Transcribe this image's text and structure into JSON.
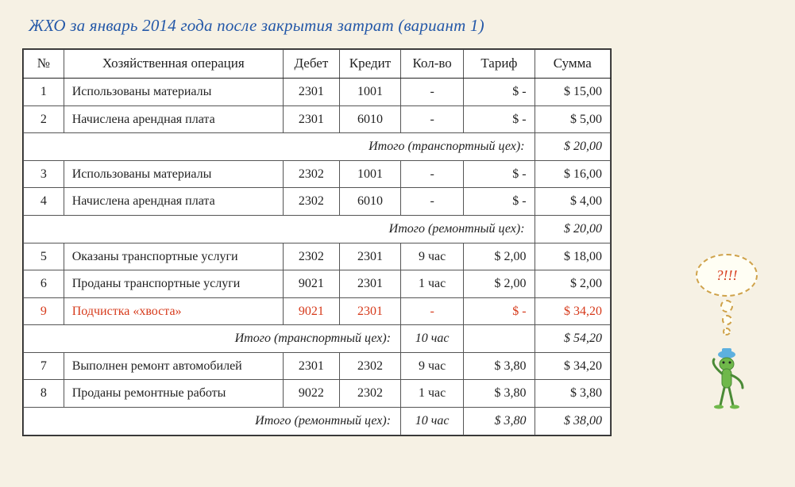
{
  "title": "ЖХО за январь 2014 года после закрытия затрат (вариант 1)",
  "columns": {
    "num": "№",
    "op": "Хозяйственная операция",
    "debit": "Дебет",
    "credit": "Кредит",
    "qty": "Кол-во",
    "rate": "Тариф",
    "sum": "Сумма"
  },
  "rows": [
    {
      "kind": "data",
      "num": "1",
      "op": "Использованы материалы",
      "debit": "2301",
      "credit": "1001",
      "qty": "-",
      "rate": "$    -",
      "sum": "$ 15,00"
    },
    {
      "kind": "data",
      "num": "2",
      "op": "Начислена арендная плата",
      "debit": "2301",
      "credit": "6010",
      "qty": "-",
      "rate": "$    -",
      "sum": "$  5,00"
    },
    {
      "kind": "subtotal",
      "span": 6,
      "label": "Итого (транспортный цех):",
      "qty": "",
      "rate": "",
      "sum": "$ 20,00"
    },
    {
      "kind": "data",
      "section_top": true,
      "num": "3",
      "op": "Использованы материалы",
      "debit": "2302",
      "credit": "1001",
      "qty": "-",
      "rate": "$    -",
      "sum": "$ 16,00"
    },
    {
      "kind": "data",
      "num": "4",
      "op": "Начислена арендная плата",
      "debit": "2302",
      "credit": "6010",
      "qty": "-",
      "rate": "$    -",
      "sum": "$  4,00"
    },
    {
      "kind": "subtotal",
      "span": 6,
      "label": "Итого (ремонтный цех):",
      "qty": "",
      "rate": "",
      "sum": "$ 20,00"
    },
    {
      "kind": "data",
      "section_top": true,
      "num": "5",
      "op": "Оказаны транспортные услуги",
      "debit": "2302",
      "credit": "2301",
      "qty": "9 час",
      "rate": "$  2,00",
      "sum": "$ 18,00"
    },
    {
      "kind": "data",
      "num": "6",
      "op": "Проданы транспортные услуги",
      "debit": "9021",
      "credit": "2301",
      "qty": "1 час",
      "rate": "$  2,00",
      "sum": "$  2,00"
    },
    {
      "kind": "data",
      "red": true,
      "num": "9",
      "op": "Подчистка «хвоста»",
      "debit": "9021",
      "credit": "2301",
      "qty": "-",
      "rate": "$    -",
      "sum": "$ 34,20"
    },
    {
      "kind": "subtotal",
      "span": 4,
      "label": "Итого (транспортный цех):",
      "qty": "10 час",
      "rate": "",
      "sum": "$ 54,20"
    },
    {
      "kind": "data",
      "section_top": true,
      "num": "7",
      "op": "Выполнен ремонт автомобилей",
      "debit": "2301",
      "credit": "2302",
      "qty": "9 час",
      "rate": "$  3,80",
      "sum": "$ 34,20"
    },
    {
      "kind": "data",
      "num": "8",
      "op": "Проданы ремонтные работы",
      "debit": "9022",
      "credit": "2302",
      "qty": "1 час",
      "rate": "$  3,80",
      "sum": "$  3,80"
    },
    {
      "kind": "subtotal",
      "span": 4,
      "label": "Итого (ремонтный цех):",
      "qty": "10 час",
      "rate": "$  3,80",
      "sum": "$ 38,00"
    }
  ],
  "mascot": {
    "bubble_text": "?!!!"
  },
  "colors": {
    "background": "#f6f1e4",
    "title": "#2458a8",
    "border": "#222222",
    "cell_border": "#555555",
    "highlight": "#d63a1b",
    "bubble_border": "#cfa24a",
    "frog_body": "#6fb84a",
    "frog_dark": "#4a8a36",
    "hat": "#5db0df"
  }
}
